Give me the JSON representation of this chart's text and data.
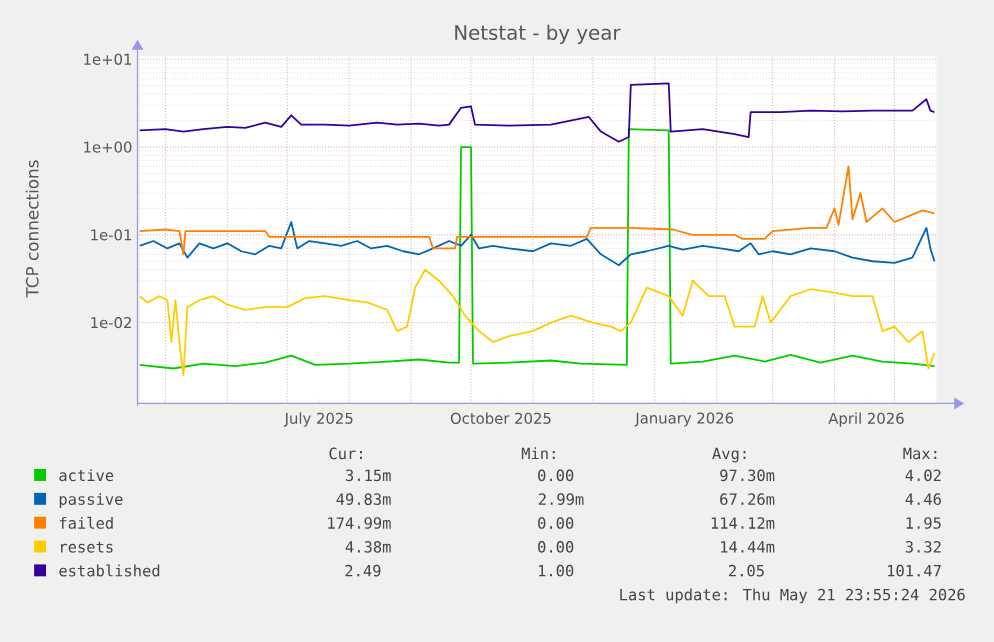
{
  "chart_data": {
    "type": "line",
    "title": "Netstat - by year",
    "ylabel": "TCP connections",
    "log": true,
    "grid": true,
    "legend": "bottom",
    "xlim": [
      "2025-04-18",
      "2026-05-22"
    ],
    "xticks": [
      {
        "value": "2025-07-17",
        "label": "July 2025"
      },
      {
        "value": "2025-10-16",
        "label": "October 2025"
      },
      {
        "value": "2026-01-16",
        "label": "January 2026"
      },
      {
        "value": "2026-04-17",
        "label": "April 2026"
      },
      {
        "value": "2025-05-01",
        "label": null
      },
      {
        "value": "2025-06-01",
        "label": null
      },
      {
        "value": "2025-07-01",
        "label": null
      },
      {
        "value": "2025-08-01",
        "label": null
      },
      {
        "value": "2025-09-01",
        "label": null
      },
      {
        "value": "2025-10-01",
        "label": null
      },
      {
        "value": "2025-11-01",
        "label": null
      },
      {
        "value": "2025-12-01",
        "label": null
      },
      {
        "value": "2026-01-01",
        "label": null
      },
      {
        "value": "2026-02-01",
        "label": null
      },
      {
        "value": "2026-03-01",
        "label": null
      },
      {
        "value": "2026-04-01",
        "label": null
      },
      {
        "value": "2026-05-01",
        "label": null
      }
    ],
    "ylim": [
      0.0012,
      11
    ],
    "yticks": [
      {
        "value": 0.01,
        "label": "1e-02"
      },
      {
        "value": 0.1,
        "label": "1e-01"
      },
      {
        "value": 1,
        "label": "1e+00"
      },
      {
        "value": 10,
        "label": "1e+01"
      }
    ],
    "series": [
      {
        "name": "active",
        "color": "#00cc00",
        "x": [
          "2025-04-18",
          "2025-05-05",
          "2025-05-20",
          "2025-06-05",
          "2025-06-20",
          "2025-07-03",
          "2025-07-15",
          "2025-08-01",
          "2025-08-20",
          "2025-09-05",
          "2025-09-20",
          "2025-09-25",
          "2025-09-26",
          "2025-10-01",
          "2025-10-02",
          "2025-10-20",
          "2025-11-10",
          "2025-11-25",
          "2025-12-18",
          "2025-12-19",
          "2026-01-08",
          "2026-01-09",
          "2026-01-25",
          "2026-02-10",
          "2026-02-25",
          "2026-03-10",
          "2026-03-25",
          "2026-04-10",
          "2026-04-25",
          "2026-05-10",
          "2026-05-21"
        ],
        "values": [
          0.0033,
          0.003,
          0.0034,
          0.0032,
          0.0035,
          0.0042,
          0.0033,
          0.0034,
          0.0036,
          0.0038,
          0.0035,
          0.0035,
          1.0,
          1.0,
          0.0034,
          0.0035,
          0.0037,
          0.0034,
          0.0033,
          1.6,
          1.55,
          0.0034,
          0.0036,
          0.0042,
          0.0036,
          0.0043,
          0.0035,
          0.0042,
          0.0036,
          0.0034,
          0.0032
        ]
      },
      {
        "name": "passive",
        "color": "#0066b3",
        "x": [
          "2025-04-18",
          "2025-04-25",
          "2025-05-02",
          "2025-05-08",
          "2025-05-12",
          "2025-05-18",
          "2025-05-25",
          "2025-06-01",
          "2025-06-08",
          "2025-06-15",
          "2025-06-22",
          "2025-06-28",
          "2025-07-03",
          "2025-07-06",
          "2025-07-12",
          "2025-07-20",
          "2025-07-28",
          "2025-08-05",
          "2025-08-12",
          "2025-08-20",
          "2025-08-28",
          "2025-09-05",
          "2025-09-12",
          "2025-09-20",
          "2025-09-26",
          "2025-10-01",
          "2025-10-05",
          "2025-10-12",
          "2025-10-20",
          "2025-11-01",
          "2025-11-10",
          "2025-11-20",
          "2025-11-28",
          "2025-12-05",
          "2025-12-14",
          "2025-12-20",
          "2025-12-28",
          "2026-01-08",
          "2026-01-15",
          "2026-01-25",
          "2026-02-03",
          "2026-02-12",
          "2026-02-18",
          "2026-02-22",
          "2026-03-01",
          "2026-03-10",
          "2026-03-20",
          "2026-04-01",
          "2026-04-10",
          "2026-04-20",
          "2026-05-01",
          "2026-05-10",
          "2026-05-17",
          "2026-05-19",
          "2026-05-21"
        ],
        "values": [
          0.075,
          0.085,
          0.07,
          0.08,
          0.055,
          0.08,
          0.07,
          0.08,
          0.065,
          0.06,
          0.075,
          0.07,
          0.14,
          0.07,
          0.085,
          0.08,
          0.075,
          0.085,
          0.07,
          0.075,
          0.065,
          0.06,
          0.07,
          0.085,
          0.075,
          0.1,
          0.07,
          0.075,
          0.07,
          0.065,
          0.08,
          0.075,
          0.09,
          0.06,
          0.045,
          0.06,
          0.065,
          0.075,
          0.068,
          0.075,
          0.07,
          0.065,
          0.08,
          0.06,
          0.065,
          0.06,
          0.07,
          0.065,
          0.055,
          0.05,
          0.048,
          0.055,
          0.12,
          0.07,
          0.05
        ]
      },
      {
        "name": "failed",
        "color": "#ff8000",
        "x": [
          "2025-04-18",
          "2025-05-01",
          "2025-05-08",
          "2025-05-10",
          "2025-05-11",
          "2025-06-20",
          "2025-06-22",
          "2025-09-10",
          "2025-09-12",
          "2025-09-23",
          "2025-09-24",
          "2025-11-28",
          "2025-11-30",
          "2025-12-20",
          "2026-01-10",
          "2026-01-20",
          "2026-02-10",
          "2026-02-14",
          "2026-02-25",
          "2026-03-01",
          "2026-03-20",
          "2026-03-28",
          "2026-04-01",
          "2026-04-03",
          "2026-04-08",
          "2026-04-10",
          "2026-04-14",
          "2026-04-17",
          "2026-04-25",
          "2026-05-01",
          "2026-05-10",
          "2026-05-15",
          "2026-05-21"
        ],
        "values": [
          0.11,
          0.115,
          0.11,
          0.06,
          0.11,
          0.11,
          0.095,
          0.095,
          0.07,
          0.07,
          0.095,
          0.095,
          0.12,
          0.12,
          0.115,
          0.1,
          0.1,
          0.09,
          0.09,
          0.11,
          0.12,
          0.12,
          0.2,
          0.13,
          0.6,
          0.15,
          0.3,
          0.14,
          0.2,
          0.14,
          0.17,
          0.19,
          0.175
        ]
      },
      {
        "name": "resets",
        "color": "#ffcc00",
        "x": [
          "2025-04-18",
          "2025-04-22",
          "2025-04-28",
          "2025-05-02",
          "2025-05-04",
          "2025-05-06",
          "2025-05-08",
          "2025-05-10",
          "2025-05-12",
          "2025-05-18",
          "2025-05-25",
          "2025-06-01",
          "2025-06-10",
          "2025-06-20",
          "2025-07-01",
          "2025-07-10",
          "2025-07-20",
          "2025-08-01",
          "2025-08-10",
          "2025-08-20",
          "2025-08-25",
          "2025-08-30",
          "2025-09-03",
          "2025-09-08",
          "2025-09-15",
          "2025-09-22",
          "2025-09-28",
          "2025-10-05",
          "2025-10-12",
          "2025-10-20",
          "2025-11-01",
          "2025-11-10",
          "2025-11-20",
          "2025-12-01",
          "2025-12-10",
          "2025-12-15",
          "2025-12-20",
          "2025-12-28",
          "2026-01-08",
          "2026-01-15",
          "2026-01-20",
          "2026-01-28",
          "2026-02-05",
          "2026-02-10",
          "2026-02-20",
          "2026-02-24",
          "2026-02-28",
          "2026-03-10",
          "2026-03-20",
          "2026-04-01",
          "2026-04-10",
          "2026-04-20",
          "2026-04-25",
          "2026-05-01",
          "2026-05-08",
          "2026-05-15",
          "2026-05-18",
          "2026-05-21"
        ],
        "values": [
          0.02,
          0.017,
          0.02,
          0.018,
          0.006,
          0.018,
          0.006,
          0.0025,
          0.015,
          0.018,
          0.02,
          0.016,
          0.014,
          0.015,
          0.015,
          0.019,
          0.02,
          0.018,
          0.017,
          0.014,
          0.008,
          0.009,
          0.025,
          0.04,
          0.03,
          0.02,
          0.012,
          0.008,
          0.006,
          0.007,
          0.008,
          0.01,
          0.012,
          0.01,
          0.009,
          0.008,
          0.01,
          0.025,
          0.02,
          0.012,
          0.03,
          0.02,
          0.02,
          0.009,
          0.009,
          0.02,
          0.01,
          0.02,
          0.024,
          0.022,
          0.02,
          0.02,
          0.008,
          0.009,
          0.006,
          0.008,
          0.003,
          0.0045
        ]
      },
      {
        "name": "established",
        "color": "#330099",
        "x": [
          "2025-04-18",
          "2025-05-01",
          "2025-05-10",
          "2025-05-20",
          "2025-06-01",
          "2025-06-10",
          "2025-06-20",
          "2025-06-28",
          "2025-07-03",
          "2025-07-08",
          "2025-07-20",
          "2025-08-01",
          "2025-08-15",
          "2025-08-25",
          "2025-09-05",
          "2025-09-15",
          "2025-09-20",
          "2025-09-26",
          "2025-10-01",
          "2025-10-03",
          "2025-10-20",
          "2025-11-10",
          "2025-11-29",
          "2025-12-05",
          "2025-12-14",
          "2025-12-19",
          "2025-12-20",
          "2026-01-08",
          "2026-01-09",
          "2026-01-25",
          "2026-02-10",
          "2026-02-17",
          "2026-02-18",
          "2026-03-05",
          "2026-03-20",
          "2026-04-05",
          "2026-04-20",
          "2026-05-10",
          "2026-05-17",
          "2026-05-19",
          "2026-05-21"
        ],
        "values": [
          1.55,
          1.6,
          1.5,
          1.6,
          1.7,
          1.65,
          1.9,
          1.7,
          2.3,
          1.8,
          1.8,
          1.75,
          1.9,
          1.8,
          1.85,
          1.75,
          1.8,
          2.8,
          2.9,
          1.8,
          1.75,
          1.8,
          2.2,
          1.5,
          1.15,
          1.3,
          5.1,
          5.3,
          1.5,
          1.6,
          1.4,
          1.3,
          2.5,
          2.5,
          2.6,
          2.55,
          2.6,
          2.6,
          3.5,
          2.6,
          2.5
        ]
      }
    ],
    "annotations": [
      "Cur:",
      "Min:",
      "Avg:",
      "Max:",
      "3.15m",
      "0.00",
      "97.30m",
      "4.02",
      "49.83m",
      "2.99m",
      "67.26m",
      "4.46",
      "174.99m",
      "0.00",
      "114.12m",
      "1.95",
      "4.38m",
      "0.00",
      "14.44m",
      "3.32",
      "2.49",
      "1.00",
      "2.05",
      "101.47",
      "Last update: Thu May 21 23:55:24 2026"
    ]
  }
}
